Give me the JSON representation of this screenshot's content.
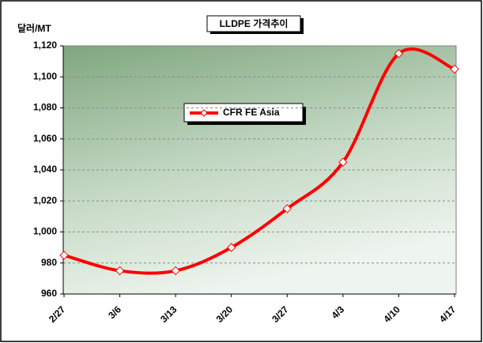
{
  "chart_data": {
    "type": "line",
    "title": "LLDPE 가격추이",
    "y_label": "달러/MT",
    "categories": [
      "2/27",
      "3/6",
      "3/13",
      "3/20",
      "3/27",
      "4/3",
      "4/10",
      "4/17"
    ],
    "series": [
      {
        "name": "CFR FE Asia",
        "color": "#ff0000",
        "values": [
          985,
          975,
          975,
          990,
          1015,
          1045,
          1115,
          1105
        ]
      }
    ],
    "ylim": [
      960,
      1120
    ],
    "yticks": [
      960,
      980,
      {
        "value": 1000,
        "label": "1,000"
      },
      {
        "value": 1020,
        "label": "1,020"
      },
      {
        "value": 1040,
        "label": "1,040"
      },
      {
        "value": 1060,
        "label": "1,060"
      },
      {
        "value": 1080,
        "label": "1,080"
      },
      {
        "value": 1100,
        "label": "1,100"
      },
      {
        "value": 1120,
        "label": "1,120"
      }
    ],
    "grid": true
  }
}
